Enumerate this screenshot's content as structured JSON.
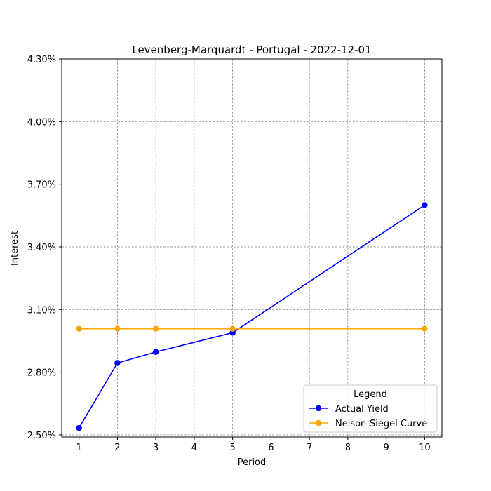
{
  "chart_data": {
    "type": "line",
    "title": "Levenberg-Marquardt - Portugal - 2022-12-01",
    "xlabel": "Period",
    "ylabel": "Interest",
    "xlim": [
      0.55,
      10.45
    ],
    "ylim": [
      2.4897,
      4.3
    ],
    "x_ticks": [
      1,
      2,
      3,
      4,
      5,
      6,
      7,
      8,
      9,
      10
    ],
    "y_ticks": [
      2.5,
      2.8,
      3.1,
      3.4,
      3.7,
      4.0,
      4.3
    ],
    "y_tick_labels": [
      "2.50%",
      "2.80%",
      "3.10%",
      "3.40%",
      "3.70%",
      "4.00%",
      "4.30%"
    ],
    "grid": true,
    "legend": {
      "title": "Legend",
      "position": "lower-right"
    },
    "series": [
      {
        "name": "Actual Yield",
        "color": "#0000ff",
        "x": [
          1,
          2,
          3,
          5,
          10
        ],
        "y": [
          2.533,
          2.844,
          2.897,
          2.989,
          3.6
        ]
      },
      {
        "name": "Nelson-Siegel Curve",
        "color": "#ffa500",
        "x": [
          1,
          2,
          3,
          5,
          10
        ],
        "y": [
          3.008,
          3.008,
          3.008,
          3.008,
          3.008
        ]
      }
    ]
  }
}
